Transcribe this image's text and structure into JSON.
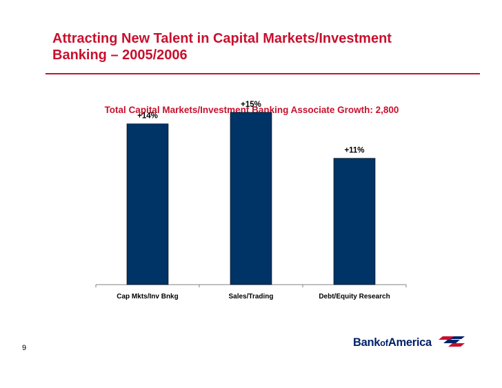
{
  "slide": {
    "title_line1": "Attracting New Talent in Capital Markets/Investment",
    "title_line2": "Banking – 2005/2006",
    "page_number": "9"
  },
  "logo": {
    "bank": "Bank",
    "of": "of",
    "america": "America",
    "flag_icon": "bank-of-america-flag-icon"
  },
  "colors": {
    "title": "#c8102e",
    "bar": "#003366",
    "logo": "#012169"
  },
  "chart_data": {
    "type": "bar",
    "title": "Total Capital Markets/Investment Banking Associate Growth: 2,800",
    "categories": [
      "Cap Mkts/Inv Bnkg",
      "Sales/Trading",
      "Debt/Equity Research"
    ],
    "values": [
      14,
      15,
      11
    ],
    "labels": [
      "+14%",
      "+15%",
      "+11%"
    ],
    "xlabel": "",
    "ylabel": "",
    "ylim": [
      0,
      18
    ],
    "grid": false,
    "legend": "none"
  }
}
